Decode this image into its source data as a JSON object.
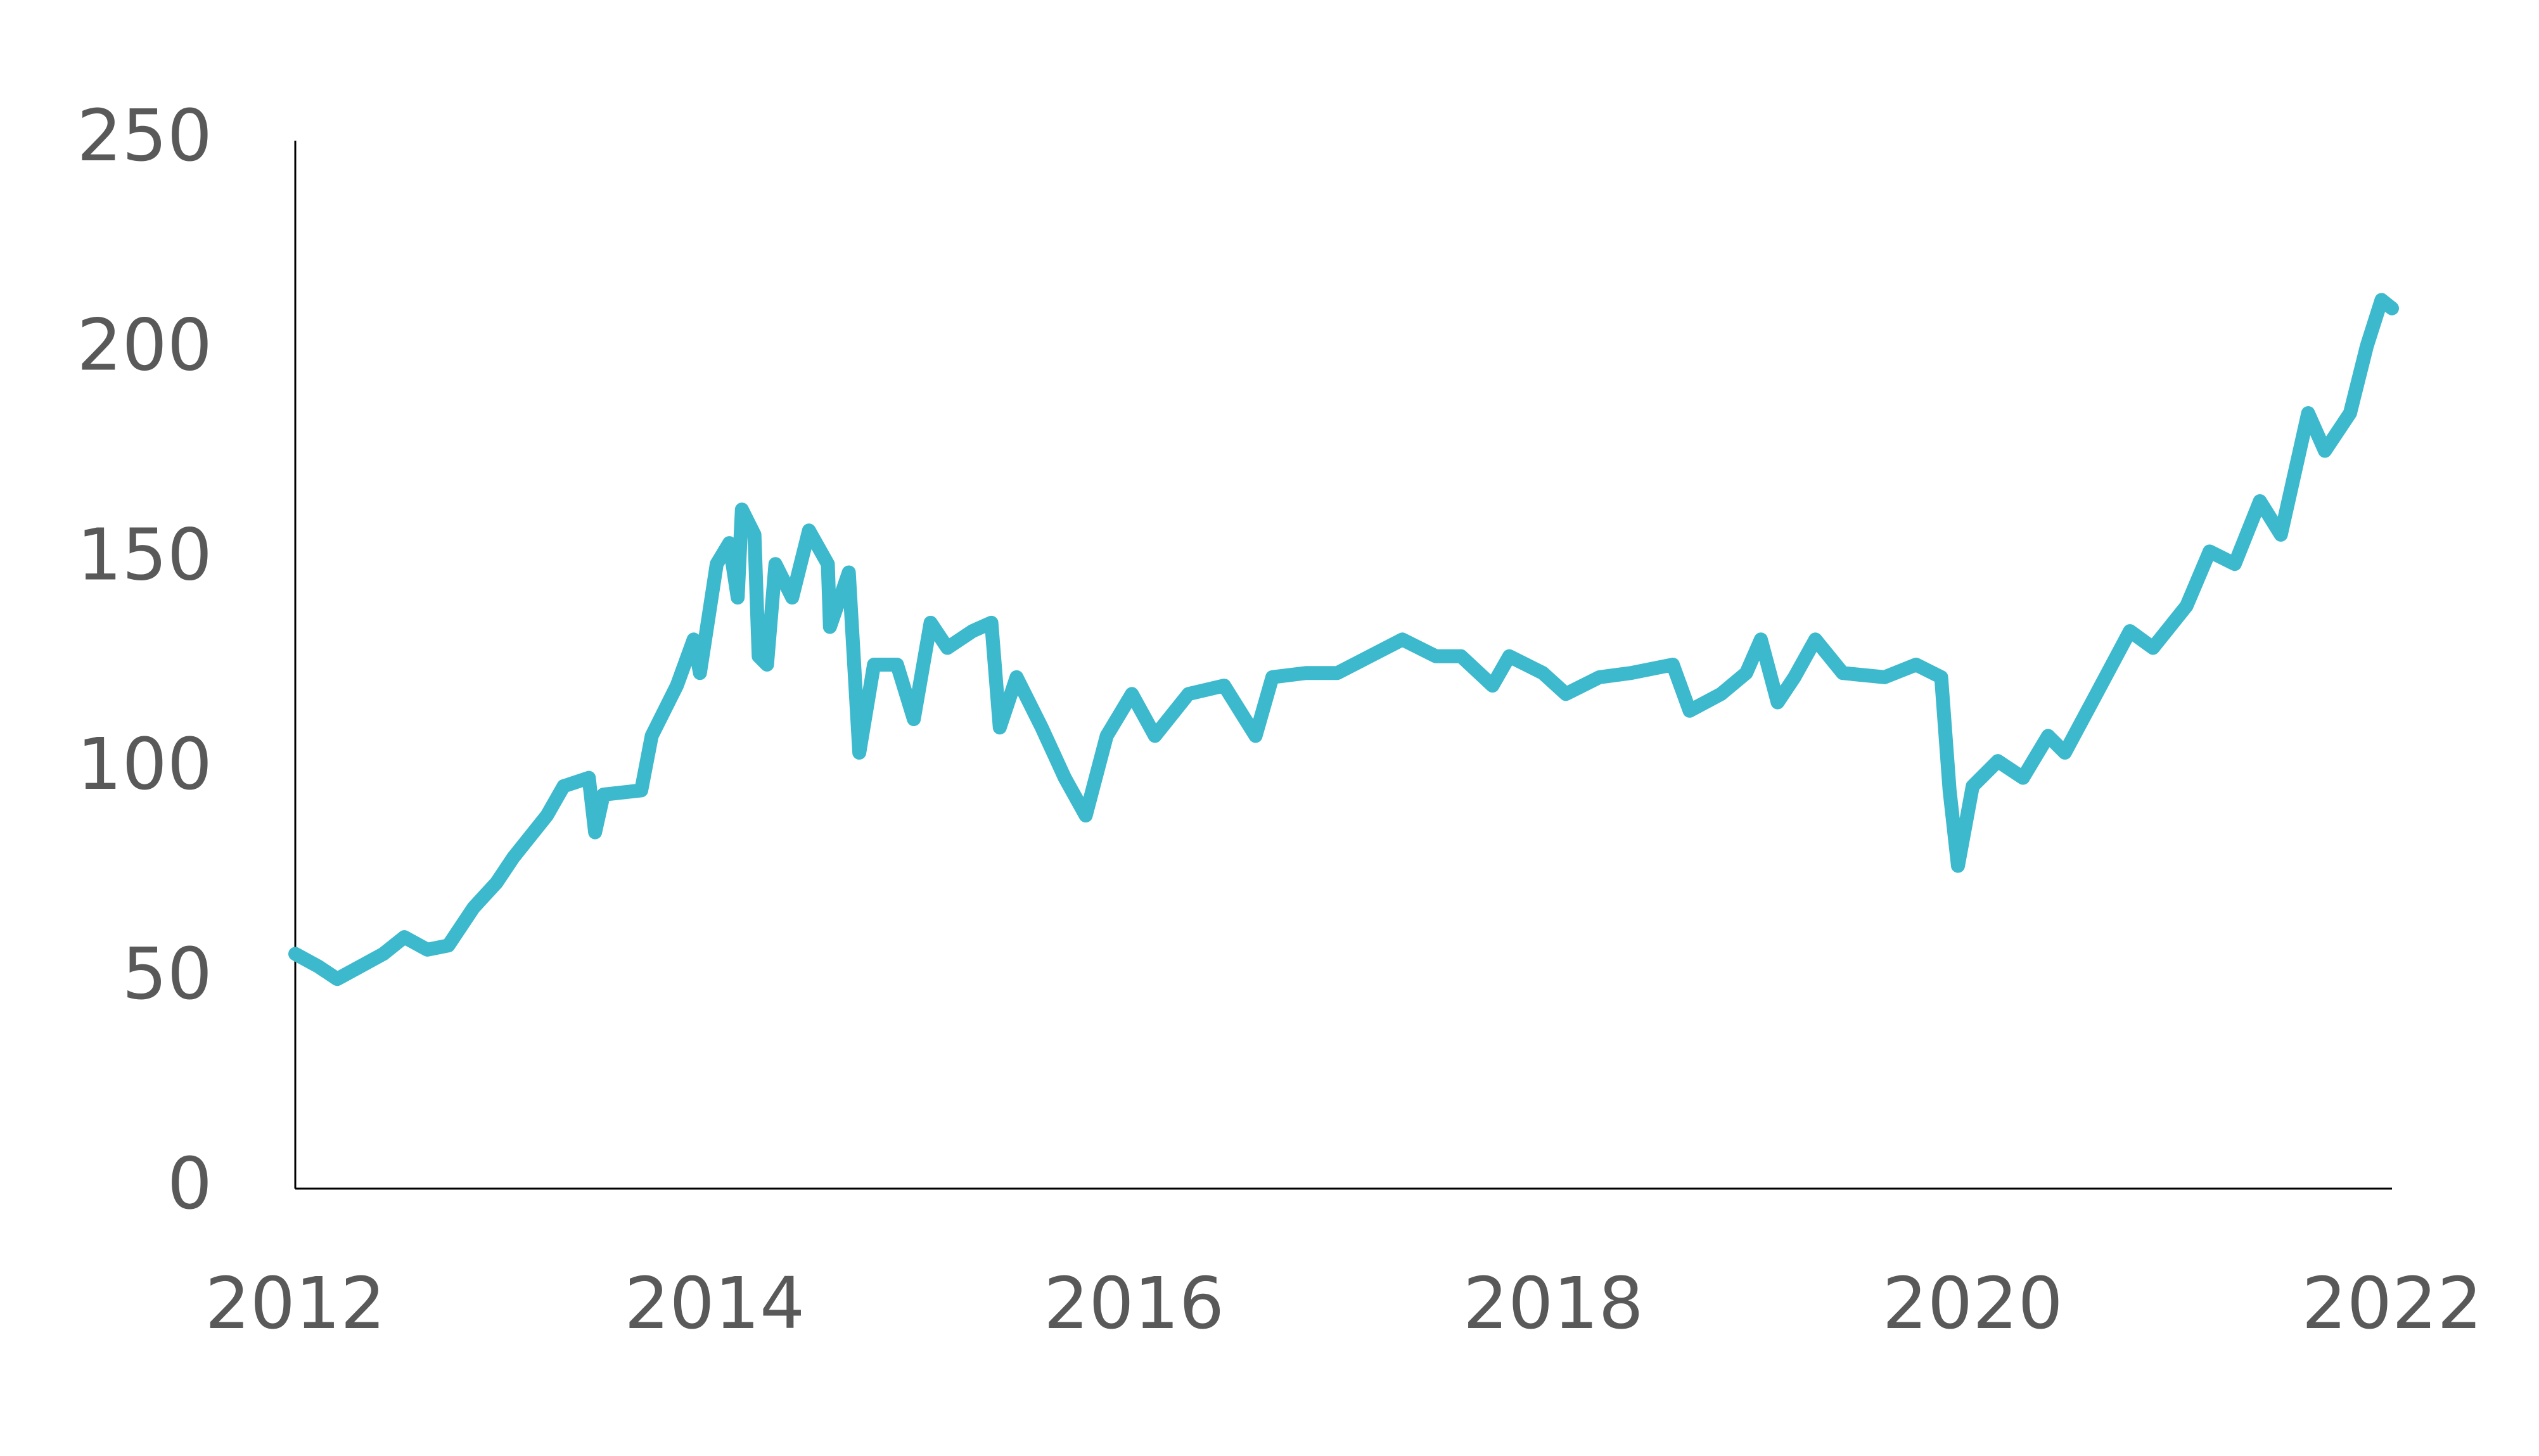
{
  "chart_data": {
    "type": "line",
    "x": [
      2012.0,
      2012.11,
      2012.2,
      2012.42,
      2012.52,
      2012.63,
      2012.73,
      2012.85,
      2012.96,
      2013.04,
      2013.2,
      2013.28,
      2013.4,
      2013.43,
      2013.47,
      2013.65,
      2013.7,
      2013.82,
      2013.9,
      2013.93,
      2014.01,
      2014.07,
      2014.11,
      2014.13,
      2014.19,
      2014.21,
      2014.25,
      2014.29,
      2014.37,
      2014.45,
      2014.54,
      2014.55,
      2014.64,
      2014.69,
      2014.76,
      2014.87,
      2014.95,
      2015.03,
      2015.11,
      2015.23,
      2015.32,
      2015.36,
      2015.44,
      2015.56,
      2015.67,
      2015.77,
      2015.87,
      2015.99,
      2016.1,
      2016.26,
      2016.43,
      2016.58,
      2016.66,
      2016.82,
      2016.97,
      2017.28,
      2017.44,
      2017.56,
      2017.71,
      2017.79,
      2017.95,
      2018.06,
      2018.22,
      2018.37,
      2018.57,
      2018.65,
      2018.8,
      2018.92,
      2018.99,
      2019.07,
      2019.15,
      2019.25,
      2019.38,
      2019.58,
      2019.73,
      2019.85,
      2019.89,
      2019.93,
      2020.0,
      2020.12,
      2020.24,
      2020.36,
      2020.44,
      2020.59,
      2020.75,
      2020.86,
      2021.02,
      2021.13,
      2021.25,
      2021.37,
      2021.47,
      2021.6,
      2021.68,
      2021.8,
      2021.88,
      2021.95,
      2022.0
    ],
    "series": [
      {
        "color": "#3cb9cc",
        "values": [
          56,
          53,
          50,
          56,
          60,
          57,
          58,
          67,
          73,
          79,
          89,
          96,
          98,
          85,
          94,
          95,
          108,
          120,
          131,
          123,
          149,
          154,
          141,
          162,
          156,
          127,
          125,
          149,
          141,
          157,
          149,
          134,
          147,
          104,
          125,
          125,
          112,
          135,
          129,
          133,
          135,
          110,
          122,
          110,
          98,
          89,
          108,
          118,
          108,
          118,
          120,
          108,
          122,
          123,
          123,
          131,
          127,
          127,
          120,
          127,
          123,
          118,
          122,
          123,
          125,
          114,
          118,
          123,
          131,
          116,
          122,
          131,
          123,
          122,
          125,
          122,
          95,
          77,
          96,
          102,
          98,
          108,
          104,
          118,
          133,
          129,
          139,
          152,
          149,
          164,
          156,
          185,
          176,
          185,
          201,
          212,
          210
        ]
      }
    ],
    "xlim": [
      2012,
      2022
    ],
    "xticks": [
      2012,
      2014,
      2016,
      2018,
      2020,
      2022
    ],
    "ylim": [
      0,
      250
    ],
    "yticks": [
      0,
      50,
      100,
      150,
      200,
      250
    ]
  }
}
